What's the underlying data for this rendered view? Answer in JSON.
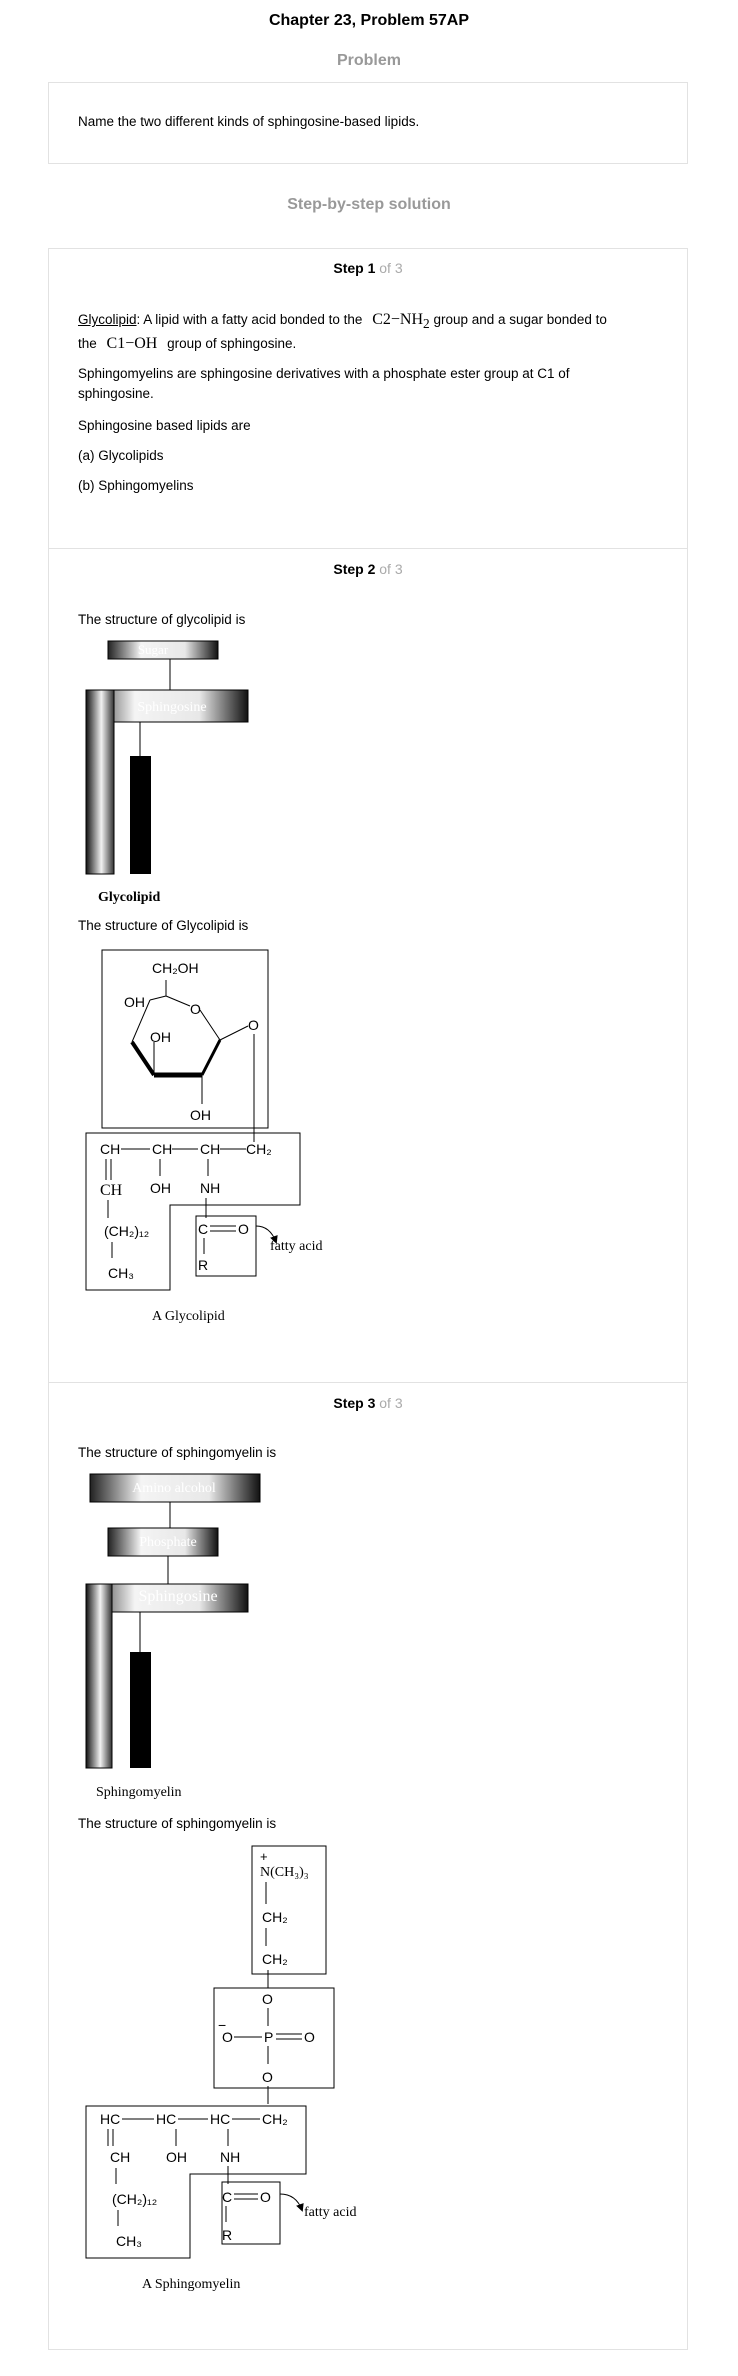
{
  "header": {
    "title": "Chapter 23, Problem 57AP"
  },
  "problem": {
    "heading": "Problem",
    "text": "Name the two different kinds of sphingosine-based lipids."
  },
  "solution": {
    "heading": "Step-by-step solution"
  },
  "step1": {
    "label": "Step 1",
    "of": " of 3",
    "term": "Glycolipid",
    "def_a": ": A lipid with a fatty acid bonded to the",
    "formula1": "C2−NH",
    "formula1_sub": "2",
    "def_b": "group and a sugar bonded to",
    "def_c": "the",
    "formula2": "C1−OH",
    "def_d": "group of sphingosine.",
    "line2": "Sphingomyelins are sphingosine derivatives with a phosphate ester group at C1 of",
    "line2b": "sphingosine.",
    "line3": "Sphingosine based lipids are",
    "item_a": "(a) Glycolipids",
    "item_b": "(b) Sphingomyelins"
  },
  "step2": {
    "label": "Step 2",
    "of": " of 3",
    "intro1": "The structure of glycolipid is",
    "diagram1": {
      "sugar": "Sugar",
      "sphingosine": "Sphingosine",
      "caption": "Glycolipid"
    },
    "intro2": "The structure of Glycolipid is",
    "diagram2": {
      "ch2oh": "CH₂OH",
      "oh1": "OH",
      "o_ring": "O",
      "oh2": "OH",
      "o_link": "O",
      "oh3": "OH",
      "ch1": "CH",
      "ch2": "CH",
      "ch3": "CH",
      "ch2b": "CH₂",
      "ch_db": "CH",
      "oh_chain": "OH",
      "nh": "NH",
      "ch2_12": "(CH₂)₁₂",
      "ch3_end": "CH₃",
      "c": "C",
      "o_carb": "O",
      "r": "R",
      "fatty_acid": "fatty acid",
      "caption": "A Glycolipid"
    }
  },
  "step3": {
    "label": "Step 3",
    "of": " of 3",
    "intro1": "The structure of sphingomyelin is",
    "diagram1": {
      "amino": "Amino alcohol",
      "phosphate": "Phosphate",
      "sphingosine": "Sphingosine",
      "caption": "Sphingomyelin"
    },
    "intro2": "The structure of sphingomyelin is",
    "diagram2": {
      "plus": "+",
      "n_group": "N(CH₃)₃",
      "ch2a": "CH₂",
      "ch2b": "CH₂",
      "o_top": "O",
      "minus": "−",
      "o_left": "O",
      "p": "P",
      "o_right": "O",
      "o_bottom": "O",
      "hc1": "HC",
      "hc2": "HC",
      "hc3": "HC",
      "ch2c": "CH₂",
      "ch": "CH",
      "oh": "OH",
      "nh": "NH",
      "ch2_12": "(CH₂)₁₂",
      "ch3_end": "CH₃",
      "c": "C",
      "o_carb": "O",
      "r": "R",
      "fatty_acid": "fatty acid",
      "caption": "A Sphingomyelin"
    }
  }
}
